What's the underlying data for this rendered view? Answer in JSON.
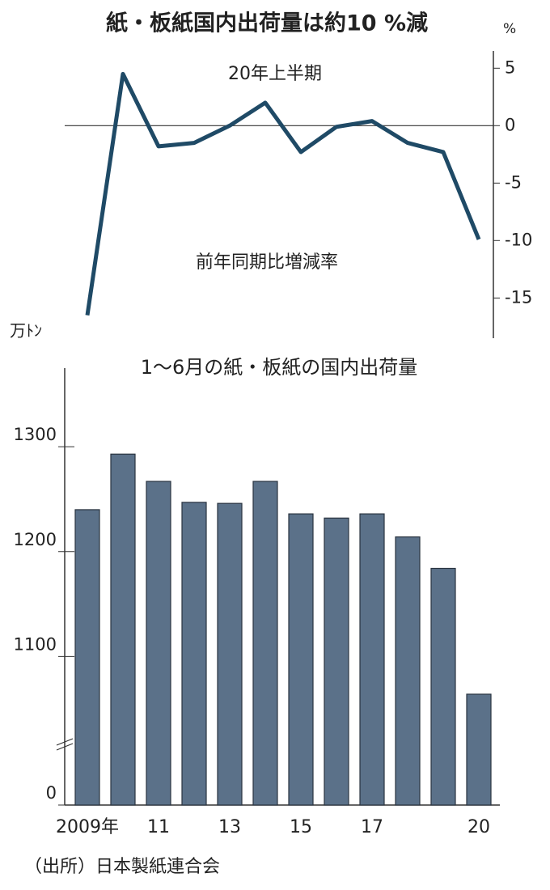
{
  "title": "紙・板紙国内出荷量は約10 %減",
  "source": "（出所）日本製紙連合会",
  "chart_data": [
    {
      "type": "line",
      "unit": "%",
      "annotations": [
        "20年上半期",
        "前年同期比増減率"
      ],
      "values": [
        -16.5,
        4.5,
        -1.8,
        -1.5,
        0,
        2.0,
        -2.3,
        -0.1,
        0.4,
        -1.5,
        -2.3,
        -9.9
      ],
      "color": "#1f4a66",
      "ylim": [
        -18.5,
        6.5
      ],
      "yticks": [
        5,
        0,
        -5,
        -10,
        -15
      ],
      "zero_line": true
    },
    {
      "type": "bar",
      "title": "1～6月の紙・板紙の国内出荷量",
      "unit": "万ﾄﾝ",
      "categories": [
        "2009年",
        null,
        "11",
        null,
        "13",
        null,
        "15",
        null,
        "17",
        null,
        null,
        "20"
      ],
      "values": [
        1240,
        1293,
        1267,
        1247,
        1246,
        1267,
        1236,
        1232,
        1236,
        1214,
        1184,
        1064
      ],
      "color": "#5b7189",
      "ylim": [
        0,
        1375
      ],
      "axis_break": [
        0,
        1020
      ],
      "yticks": [
        0,
        1100,
        1200,
        1300
      ]
    }
  ]
}
